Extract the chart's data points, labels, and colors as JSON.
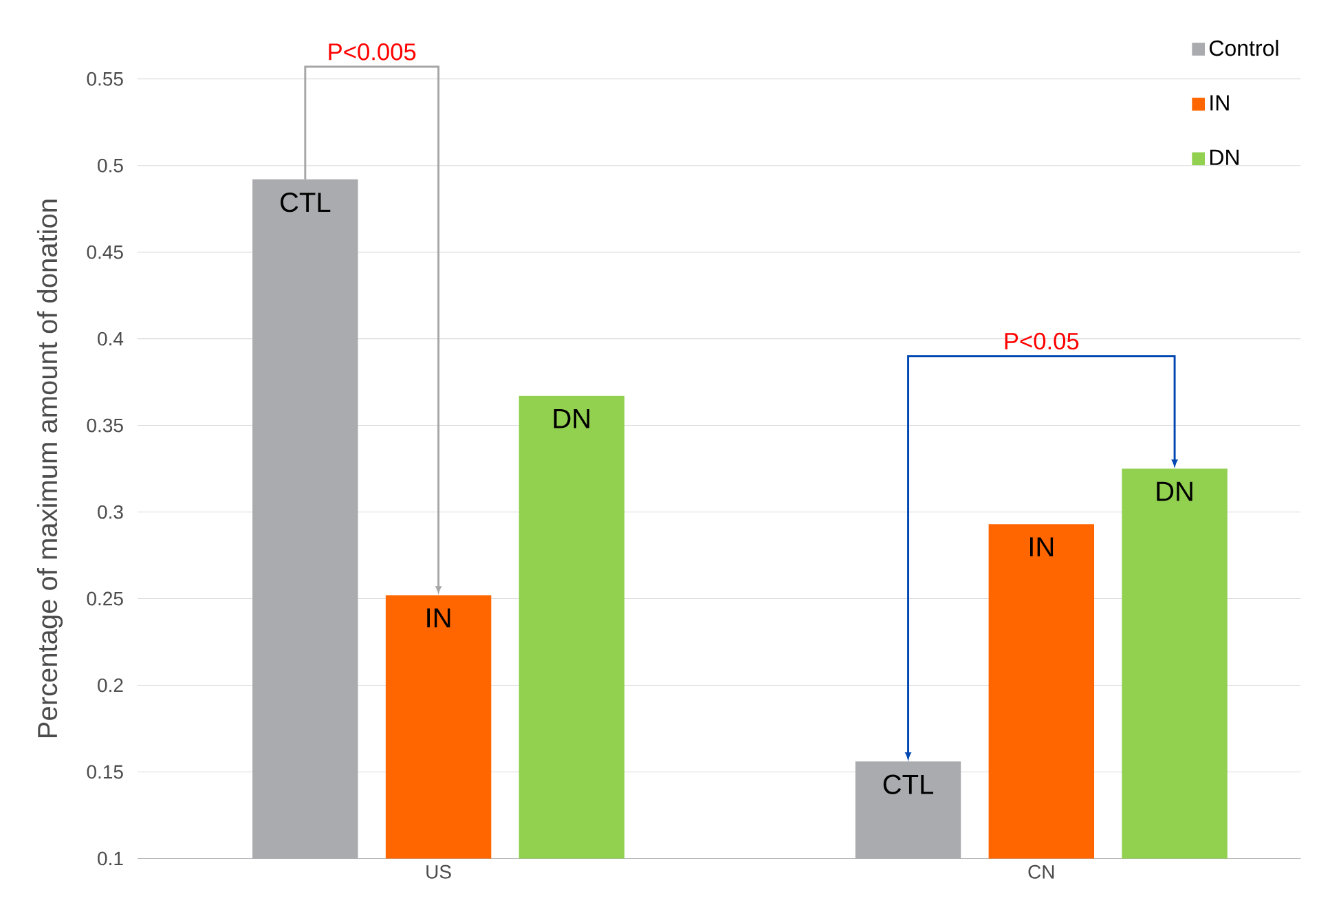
{
  "chart_data": {
    "type": "bar",
    "ylabel": "Percentage of maximum amount of donation",
    "categories": [
      "US",
      "CN"
    ],
    "series": [
      {
        "name": "Control",
        "color": "#a9abae",
        "values": [
          0.492,
          0.156
        ],
        "value_labels": [
          "CTL",
          "CTL"
        ]
      },
      {
        "name": "IN",
        "color": "#ff6600",
        "values": [
          0.252,
          0.293
        ],
        "value_labels": [
          "IN",
          "IN"
        ]
      },
      {
        "name": "DN",
        "color": "#92d050",
        "values": [
          0.367,
          0.325
        ],
        "value_labels": [
          "DN",
          "DN"
        ]
      }
    ],
    "ylim": [
      0.1,
      0.55
    ],
    "yticks": [
      0.1,
      0.15,
      0.2,
      0.25,
      0.3,
      0.35,
      0.4,
      0.45,
      0.5,
      0.55
    ],
    "grid": "y",
    "legend": "top right",
    "annotations": [
      "P<0.005",
      "P<0.05"
    ]
  }
}
